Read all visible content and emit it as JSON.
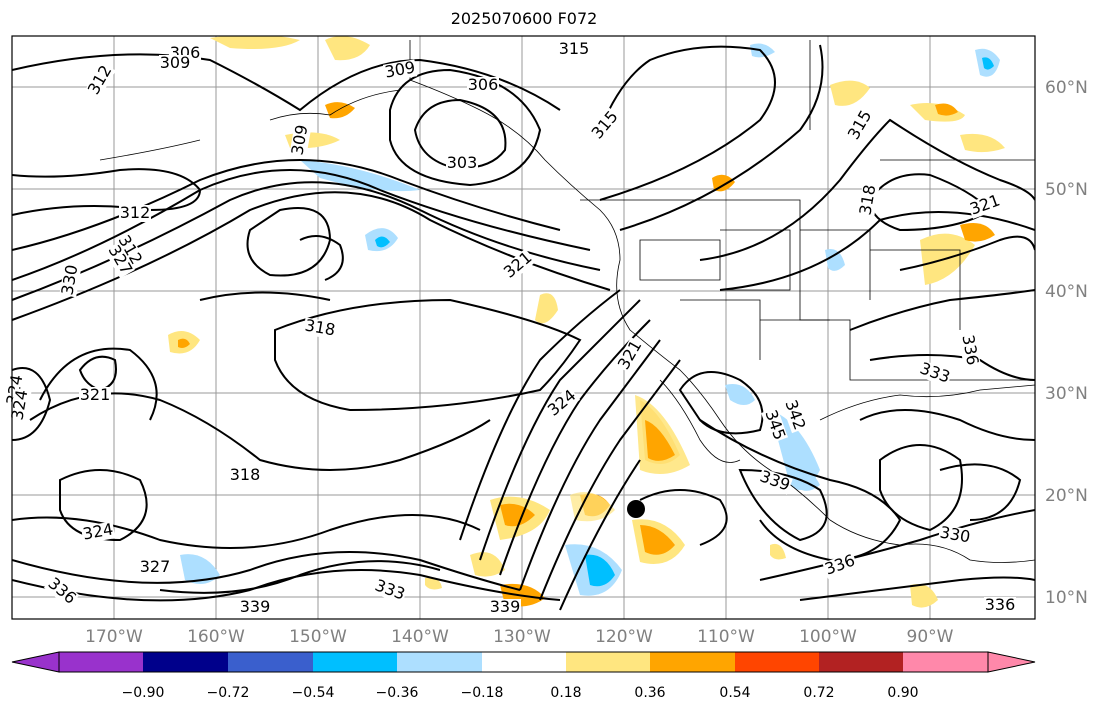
{
  "title": "2025070600 F072",
  "lat_labels": [
    "60°N",
    "50°N",
    "40°N",
    "30°N",
    "20°N",
    "10°N"
  ],
  "lon_labels": [
    "170°W",
    "160°W",
    "150°W",
    "140°W",
    "130°W",
    "120°W",
    "110°W",
    "100°W",
    "90°W"
  ],
  "contour_labels": [
    "306",
    "309",
    "312",
    "309",
    "306",
    "303",
    "315",
    "315",
    "315",
    "309",
    "312",
    "312",
    "318",
    "321",
    "321",
    "324",
    "327",
    "330",
    "324",
    "321",
    "318",
    "324",
    "327",
    "336",
    "339",
    "333",
    "339",
    "336",
    "342",
    "345",
    "339",
    "336",
    "330",
    "333",
    "336",
    "318",
    "321",
    "324"
  ],
  "colorbar": {
    "ticks": [
      "−0.90",
      "−0.72",
      "−0.54",
      "−0.36",
      "−0.18",
      "0.18",
      "0.36",
      "0.54",
      "0.72",
      "0.90"
    ],
    "colors": [
      "#9932CC",
      "#00008B",
      "#3A5FCD",
      "#00BFFF",
      "#ADDFFF",
      "#FFFFFF",
      "#FFE680",
      "#FFA500",
      "#FF4500",
      "#B22222",
      "#FF88AA"
    ]
  },
  "marker": "storm-center-dot"
}
